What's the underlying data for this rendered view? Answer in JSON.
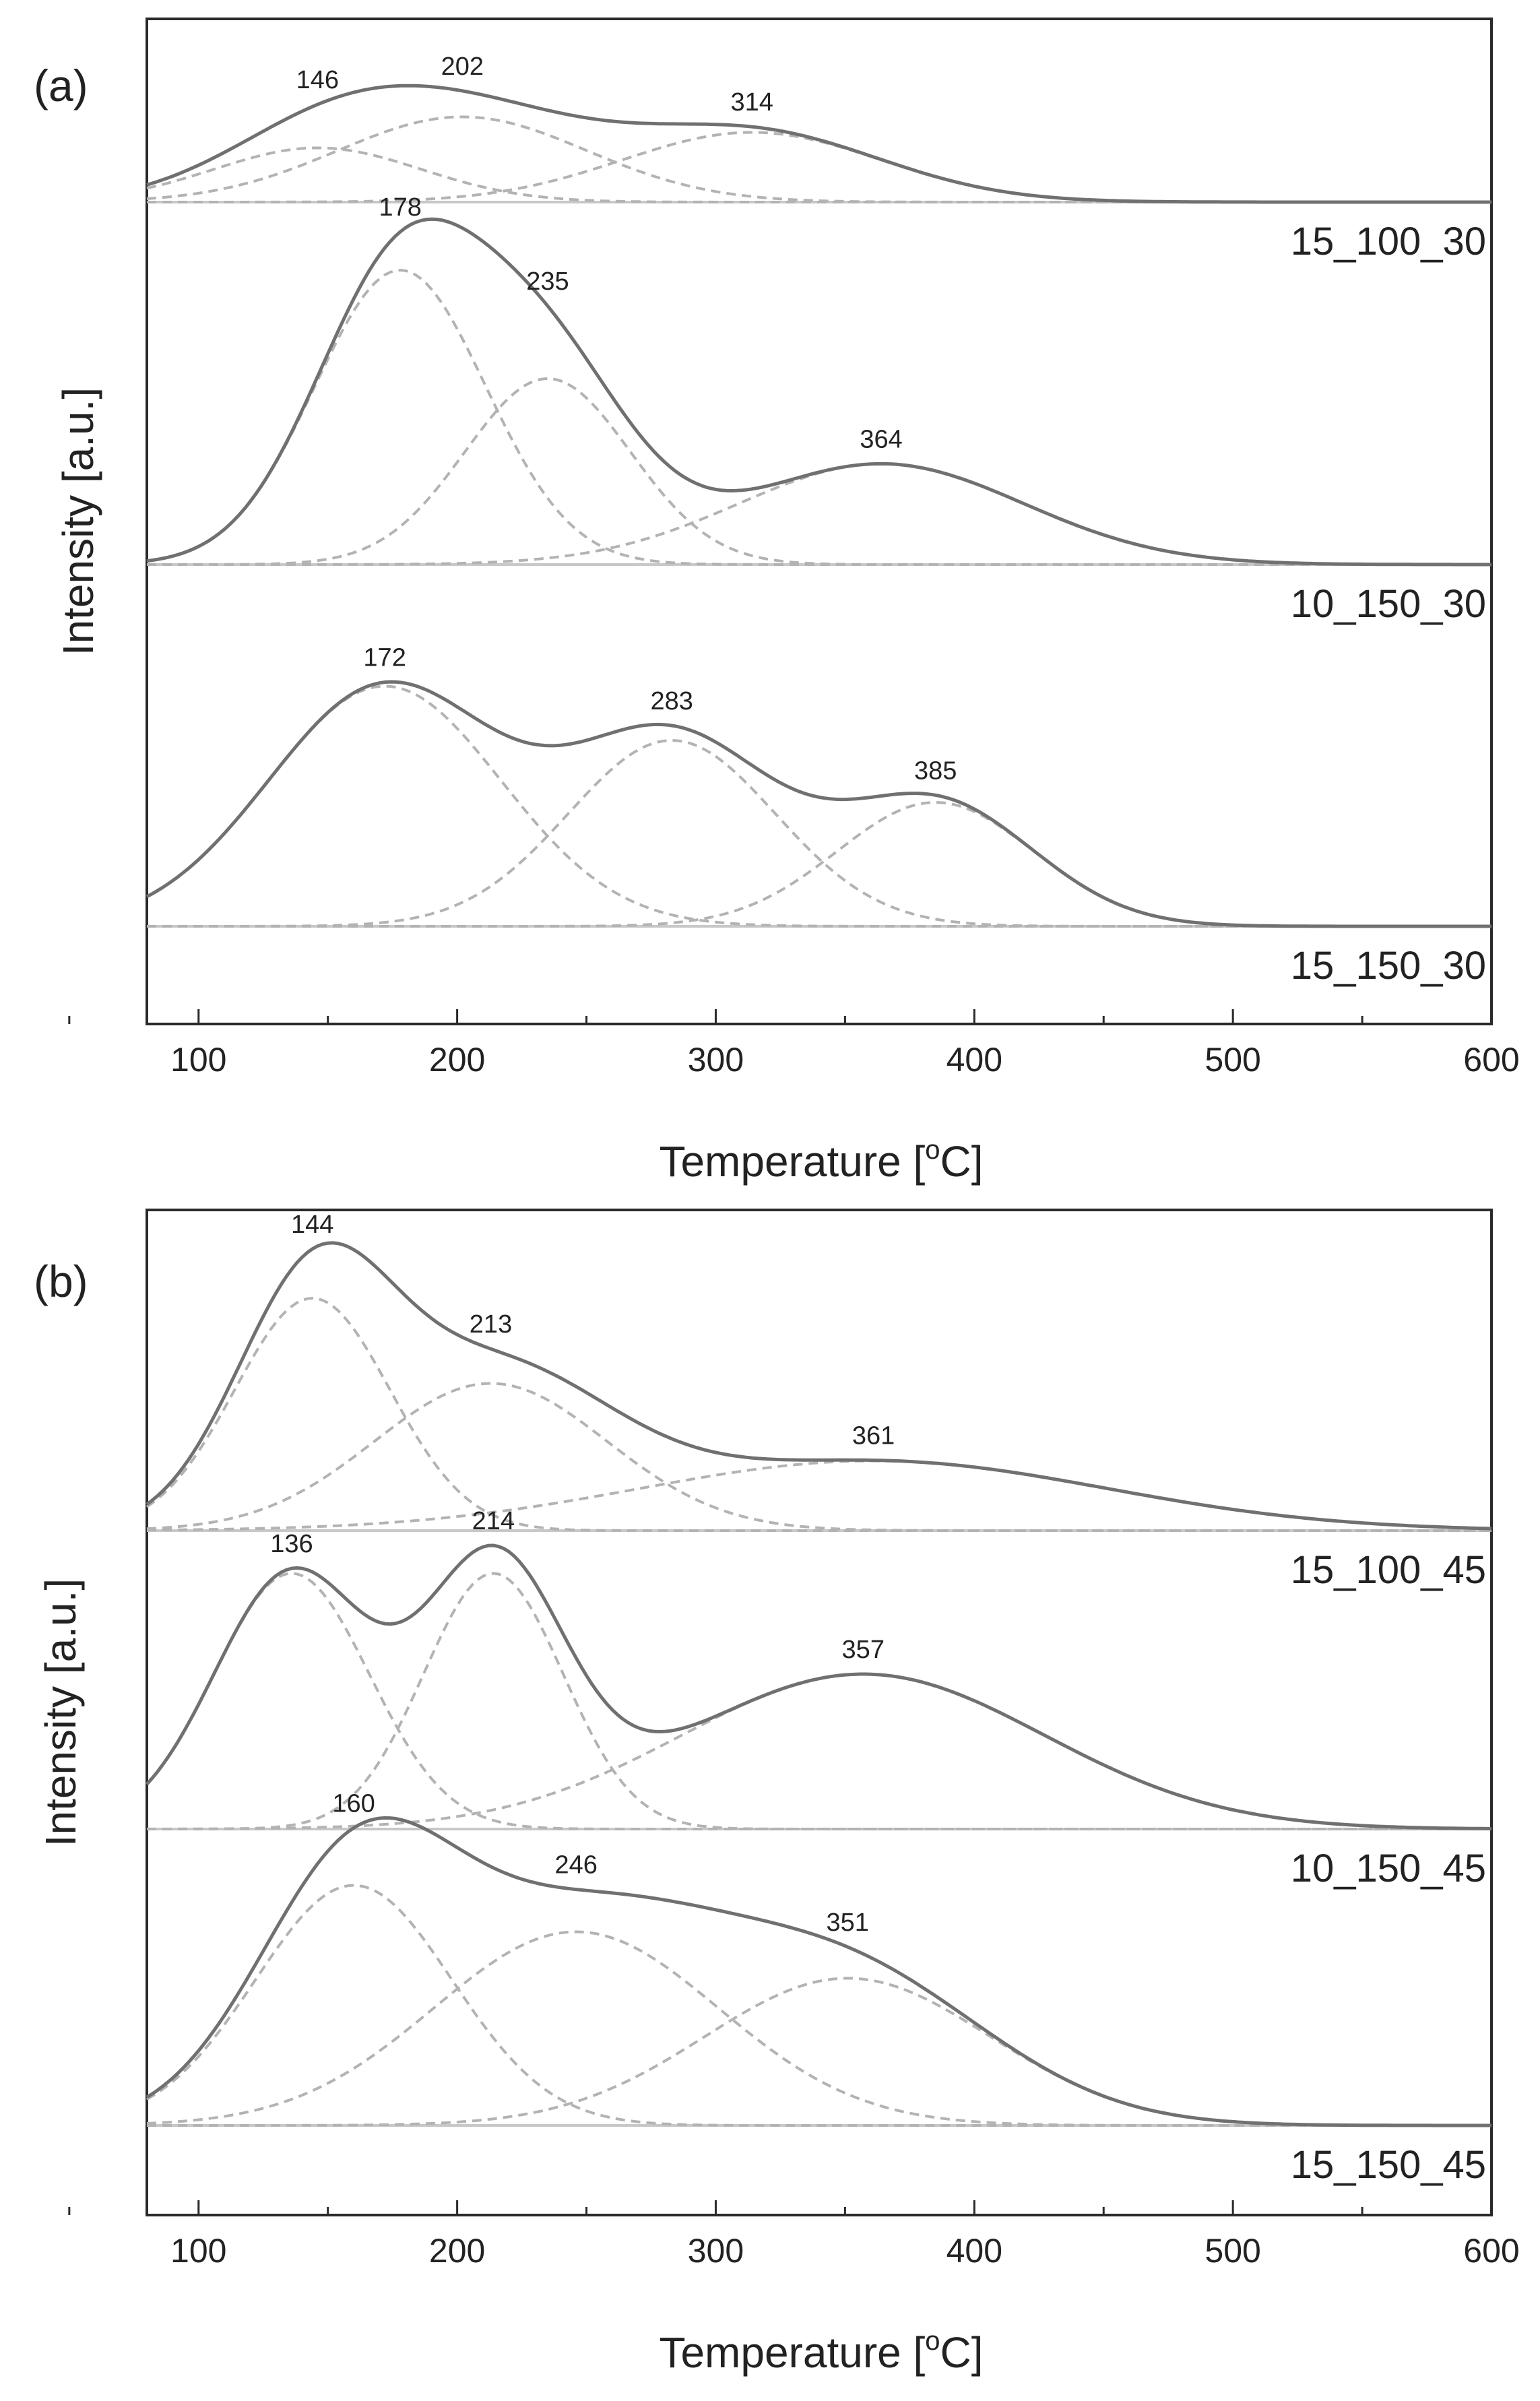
{
  "chart_data": [
    {
      "type": "line",
      "panel_label": "(a)",
      "xlabel": "Temperature",
      "xlabel_unit_base": "[",
      "xlabel_unit_sup": "o",
      "xlabel_unit_end": "C]",
      "ylabel": "Intensity [a.u.]",
      "xlim": [
        80,
        600
      ],
      "xticks": [
        100,
        200,
        300,
        400,
        500,
        600
      ],
      "grid": false,
      "series": [
        {
          "name": "15_100_30",
          "amplitude_scale": 0.08,
          "peaks": [
            {
              "center": 146,
              "label": "146",
              "height": 0.35,
              "sigma": 40
            },
            {
              "center": 202,
              "label": "202",
              "height": 0.55,
              "sigma": 48
            },
            {
              "center": 314,
              "label": "314",
              "height": 0.45,
              "sigma": 50
            }
          ]
        },
        {
          "name": "10_150_30",
          "amplitude_scale": 0.08,
          "peaks": [
            {
              "center": 178,
              "label": "178",
              "height": 1.9,
              "sigma": 33
            },
            {
              "center": 235,
              "label": "235",
              "height": 1.2,
              "sigma": 32
            },
            {
              "center": 364,
              "label": "364",
              "height": 0.65,
              "sigma": 55
            }
          ]
        },
        {
          "name": "15_150_30",
          "amplitude_scale": 0.08,
          "peaks": [
            {
              "center": 172,
              "label": "172",
              "height": 1.55,
              "sigma": 45
            },
            {
              "center": 283,
              "label": "283",
              "height": 1.2,
              "sigma": 40
            },
            {
              "center": 385,
              "label": "385",
              "height": 0.8,
              "sigma": 38
            }
          ]
        }
      ]
    },
    {
      "type": "line",
      "panel_label": "(b)",
      "xlabel": "Temperature",
      "xlabel_unit_base": "[",
      "xlabel_unit_sup": "o",
      "xlabel_unit_end": "C]",
      "ylabel": "Intensity [a.u.]",
      "xlim": [
        80,
        600
      ],
      "xticks": [
        100,
        200,
        300,
        400,
        500,
        600
      ],
      "grid": false,
      "series": [
        {
          "name": "15_100_45",
          "amplitude_scale": 0.08,
          "peaks": [
            {
              "center": 144,
              "label": "144",
              "height": 1.5,
              "sigma": 30
            },
            {
              "center": 213,
              "label": "213",
              "height": 0.95,
              "sigma": 45
            },
            {
              "center": 361,
              "label": "361",
              "height": 0.45,
              "sigma": 90
            }
          ]
        },
        {
          "name": "10_150_45",
          "amplitude_scale": 0.08,
          "peaks": [
            {
              "center": 136,
              "label": "136",
              "height": 1.65,
              "sigma": 30
            },
            {
              "center": 214,
              "label": "214",
              "height": 1.65,
              "sigma": 27
            },
            {
              "center": 357,
              "label": "357",
              "height": 1.0,
              "sigma": 70
            }
          ]
        },
        {
          "name": "15_150_45",
          "amplitude_scale": 0.08,
          "peaks": [
            {
              "center": 160,
              "label": "160",
              "height": 1.55,
              "sigma": 38
            },
            {
              "center": 246,
              "label": "246",
              "height": 1.25,
              "sigma": 55
            },
            {
              "center": 351,
              "label": "351",
              "height": 0.95,
              "sigma": 55
            }
          ]
        }
      ]
    }
  ]
}
